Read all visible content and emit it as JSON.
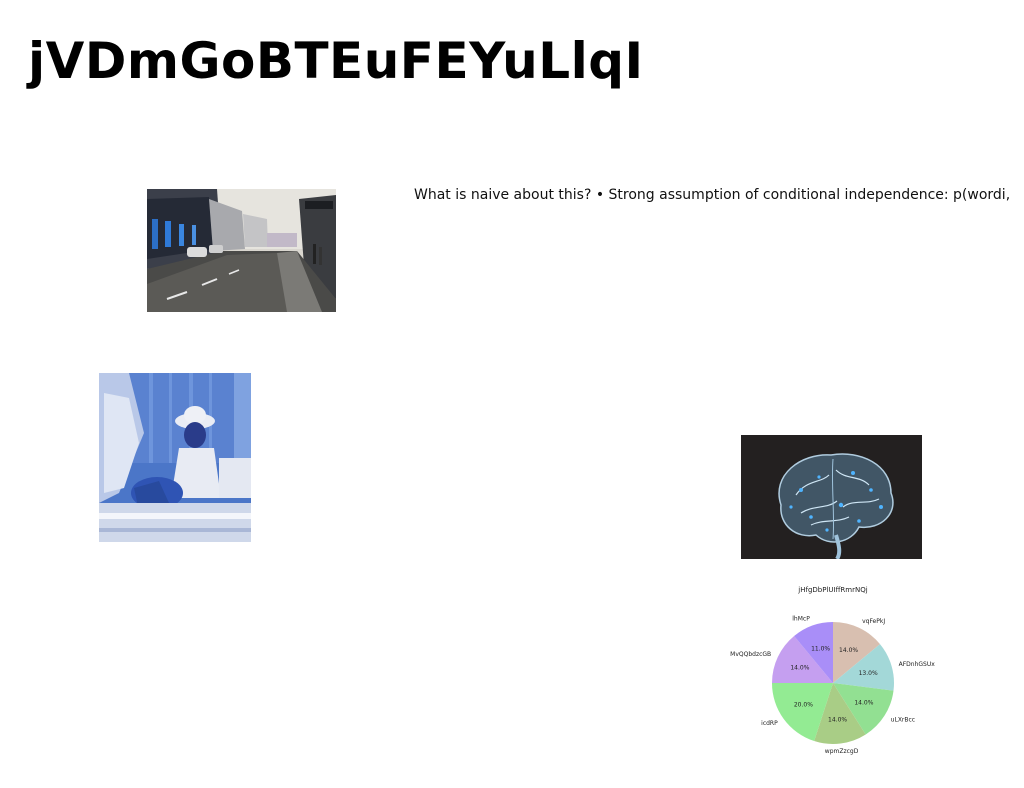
{
  "page": {
    "title": "jVDmGoBTEuFEYuLlqI",
    "body_text": "What is naive about this? • Strong assumption of conditional independence: p(wordi,"
  },
  "images": [
    {
      "name": "street-photo",
      "description": ""
    },
    {
      "name": "person-photo",
      "description": ""
    },
    {
      "name": "brain-illustration",
      "description": ""
    }
  ],
  "chart_data": {
    "type": "pie",
    "title": "jHfgDbPlUIffRmrNQj",
    "start_angle_deg": 90,
    "direction": "clockwise",
    "slices": [
      {
        "label": "vqFePkJ",
        "value": 14.0,
        "pct_label": "14.0%",
        "color": "#d8bfb0"
      },
      {
        "label": "AFDnhGSUx",
        "value": 13.0,
        "pct_label": "13.0%",
        "color": "#a3d8d8"
      },
      {
        "label": "uLXrBcc",
        "value": 14.0,
        "pct_label": "14.0%",
        "color": "#92e092"
      },
      {
        "label": "wpmZzcgD",
        "value": 14.0,
        "pct_label": "14.0%",
        "color": "#a9cd86"
      },
      {
        "label": "icdRP",
        "value": 20.0,
        "pct_label": "20.0%",
        "color": "#93eb93"
      },
      {
        "label": "MvQQbdzcGB",
        "value": 14.0,
        "pct_label": "14.0%",
        "color": "#c59ff0"
      },
      {
        "label": "lhMcP",
        "value": 11.0,
        "pct_label": "11.0%",
        "color": "#a98ef8"
      }
    ]
  }
}
